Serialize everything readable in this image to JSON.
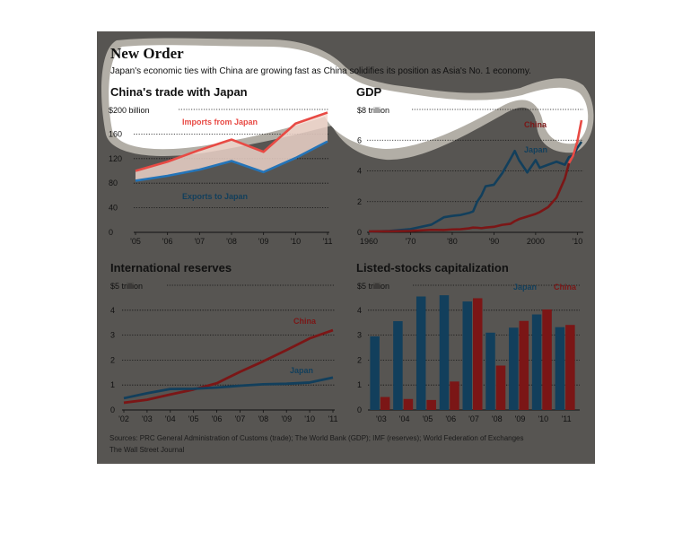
{
  "header": {
    "title": "New Order",
    "subtitle": "Japan's economic ties with China are growing fast as China solidifies its position as Asia's No. 1 economy."
  },
  "sources": {
    "line1": "Sources: PRC General Administration of Customs (trade); The World Bank (GDP); IMF (reserves); World Federation of Exchanges",
    "line2": "The Wall Street Journal"
  },
  "colors": {
    "china": "#7b1616",
    "japan": "#123f5c",
    "imports": "#e84a44",
    "exports": "#2474b8",
    "panel": "#575552",
    "grid": "#111111"
  },
  "chart_data": [
    {
      "id": "trade",
      "type": "line",
      "title": "China's trade with Japan",
      "unit_label": "$200 billion",
      "x": [
        2005,
        2006,
        2007,
        2008,
        2009,
        2010,
        2011
      ],
      "xticks": [
        "'05",
        "'06",
        "'07",
        "'08",
        "'09",
        "'10",
        "'11"
      ],
      "yticks": [
        0,
        40,
        80,
        120,
        160
      ],
      "ylim": [
        0,
        200
      ],
      "series": [
        {
          "name": "Imports from Japan",
          "color": "#e84a44",
          "values": [
            100,
            115,
            134,
            151,
            131,
            177,
            195
          ]
        },
        {
          "name": "Exports to Japan",
          "color": "#2474b8",
          "values": [
            84,
            92,
            102,
            116,
            98,
            121,
            148
          ]
        }
      ]
    },
    {
      "id": "gdp",
      "type": "line",
      "title": "GDP",
      "unit_label": "$8 trillion",
      "x": [
        1960,
        1965,
        1970,
        1975,
        1978,
        1980,
        1982,
        1984,
        1985,
        1986,
        1987,
        1988,
        1990,
        1992,
        1994,
        1995,
        1996,
        1998,
        2000,
        2001,
        2003,
        2005,
        2007,
        2008,
        2009,
        2010,
        2011
      ],
      "xticks": [
        "1960",
        "'70",
        "'80",
        "'90",
        "2000",
        "'10"
      ],
      "xtick_values": [
        1960,
        1970,
        1980,
        1990,
        2000,
        2010
      ],
      "yticks": [
        0,
        2,
        4,
        6
      ],
      "ylim": [
        0,
        8
      ],
      "series": [
        {
          "name": "Japan",
          "color": "#123f5c",
          "values": [
            0.04,
            0.09,
            0.21,
            0.5,
            0.98,
            1.07,
            1.13,
            1.26,
            1.36,
            2.0,
            2.4,
            3.0,
            3.1,
            3.85,
            4.8,
            5.3,
            4.7,
            3.9,
            4.7,
            4.2,
            4.4,
            4.6,
            4.4,
            4.9,
            5.0,
            5.5,
            5.9
          ]
        },
        {
          "name": "China",
          "color": "#e84a44",
          "values": [
            0.06,
            0.07,
            0.09,
            0.16,
            0.15,
            0.19,
            0.2,
            0.26,
            0.31,
            0.3,
            0.27,
            0.31,
            0.36,
            0.49,
            0.56,
            0.73,
            0.86,
            1.03,
            1.2,
            1.32,
            1.64,
            2.26,
            3.5,
            4.5,
            5.0,
            5.9,
            7.3
          ]
        }
      ]
    },
    {
      "id": "reserves",
      "type": "line",
      "title": "International reserves",
      "unit_label": "$5 trillion",
      "x": [
        2002,
        2003,
        2004,
        2005,
        2006,
        2007,
        2008,
        2009,
        2010,
        2011
      ],
      "xticks": [
        "'02",
        "'03",
        "'04",
        "'05",
        "'06",
        "'07",
        "'08",
        "'09",
        "'10",
        "'11"
      ],
      "yticks": [
        0,
        1,
        2,
        3,
        4
      ],
      "ylim": [
        0,
        5
      ],
      "series": [
        {
          "name": "China",
          "color": "#7b1616",
          "values": [
            0.29,
            0.41,
            0.62,
            0.82,
            1.07,
            1.53,
            1.95,
            2.4,
            2.87,
            3.2
          ]
        },
        {
          "name": "Japan",
          "color": "#123f5c",
          "values": [
            0.47,
            0.67,
            0.84,
            0.85,
            0.9,
            0.97,
            1.03,
            1.05,
            1.1,
            1.3
          ]
        }
      ]
    },
    {
      "id": "stocks",
      "type": "bar",
      "title": "Listed-stocks capitalization",
      "unit_label": "$5 trillion",
      "categories": [
        "'03",
        "'04",
        "'05",
        "'06",
        "'07",
        "'08",
        "'09",
        "'10",
        "'11"
      ],
      "yticks": [
        0,
        1,
        2,
        3,
        4
      ],
      "ylim": [
        0,
        5
      ],
      "series": [
        {
          "name": "Japan",
          "color": "#123f5c",
          "values": [
            2.95,
            3.56,
            4.55,
            4.6,
            4.35,
            3.1,
            3.3,
            3.83,
            3.32
          ]
        },
        {
          "name": "China",
          "color": "#7b1616",
          "values": [
            0.52,
            0.44,
            0.4,
            1.14,
            4.48,
            1.78,
            3.57,
            4.03,
            3.41
          ]
        }
      ]
    }
  ]
}
